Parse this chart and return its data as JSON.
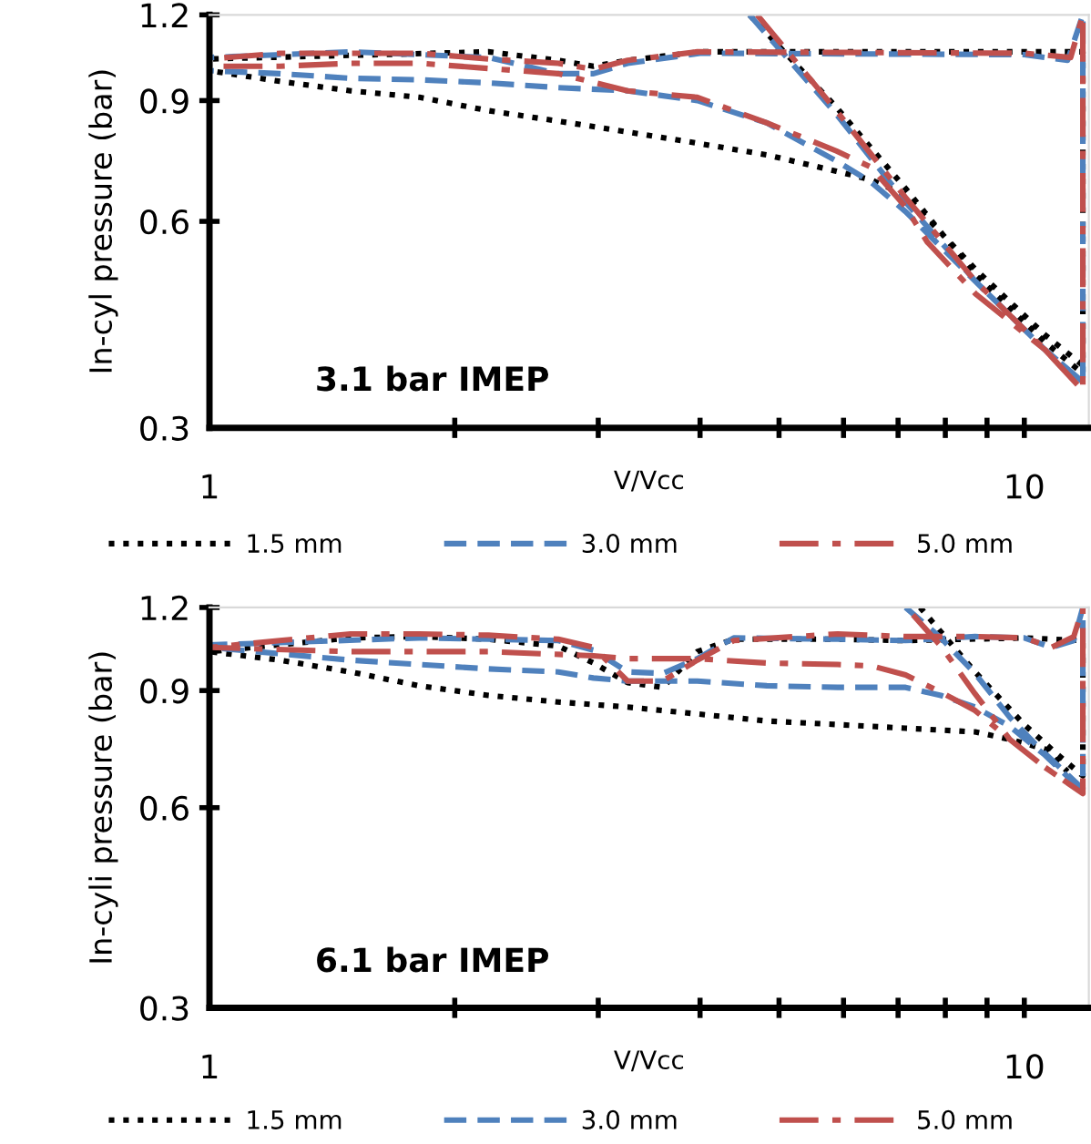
{
  "chart_data": [
    {
      "type": "line",
      "ylabel": "In-cyl pressure (bar)",
      "xlabel": "V/Vcc",
      "annotations": [
        "3.1 bar IMEP"
      ],
      "log": "xy",
      "xlim": [
        1,
        12
      ],
      "ylim": [
        0.3,
        1.2
      ],
      "xticks": [
        1,
        {
          "value": 2,
          "label": null
        },
        {
          "value": 3,
          "label": null
        },
        {
          "value": 4,
          "label": null
        },
        {
          "value": 5,
          "label": null
        },
        {
          "value": 6,
          "label": null
        },
        {
          "value": 7,
          "label": null
        },
        {
          "value": 8,
          "label": null
        },
        {
          "value": 9,
          "label": null
        },
        10
      ],
      "yticks": [
        0.3,
        0.6,
        0.9,
        1.2
      ],
      "grid": false,
      "legend": "bottom",
      "marker": "none",
      "series": [
        {
          "name": "1.5 mm",
          "color": "#000000",
          "line_style": "dotted",
          "x": [
            4.6,
            5.88,
            7.15,
            8.72,
            10.6,
            11.8,
            11.8,
            4.0,
            3.26,
            2.96,
            2.68,
            2.2,
            1.0,
            1.0,
            1.22,
            1.49,
            1.81,
            2.2,
            2.68,
            3.26,
            3.97,
            4.83,
            5.88,
            6.48,
            7.15,
            8.72,
            10.6,
            11.8
          ],
          "values": [
            1.2,
            0.88,
            0.67,
            0.5,
            0.4,
            0.36,
            1.06,
            1.06,
            1.03,
            1.01,
            1.03,
            1.06,
            1.035,
            0.995,
            0.96,
            0.93,
            0.91,
            0.87,
            0.84,
            0.81,
            0.78,
            0.75,
            0.71,
            0.69,
            0.655,
            0.51,
            0.41,
            0.37
          ]
        },
        {
          "name": "3.0 mm",
          "color": "#4f81bd",
          "line_style": "dashed",
          "x": [
            4.6,
            5.88,
            7.15,
            8.72,
            10.6,
            11.8,
            11.8,
            11.3,
            10,
            4.0,
            3.26,
            2.96,
            2.68,
            2.2,
            1.49,
            1.0,
            1.0,
            1.22,
            1.49,
            1.81,
            2.2,
            2.68,
            3.26,
            3.97,
            4.83,
            5.88,
            6.48,
            7.15,
            8.72,
            10.6,
            11.8
          ],
          "values": [
            1.2,
            0.86,
            0.64,
            0.49,
            0.39,
            0.35,
            1.2,
            1.03,
            1.05,
            1.055,
            1.02,
            0.985,
            0.985,
            1.04,
            1.06,
            1.04,
            0.995,
            0.985,
            0.97,
            0.965,
            0.955,
            0.94,
            0.93,
            0.9,
            0.835,
            0.735,
            0.685,
            0.62,
            0.49,
            0.39,
            0.35
          ]
        },
        {
          "name": "5.0 mm",
          "color": "#c0504d",
          "line_style": "dashdot",
          "x": [
            4.7,
            5.88,
            7.15,
            8.72,
            10.6,
            11.8,
            11.8,
            11.4,
            10,
            3.97,
            3.26,
            2.96,
            2.68,
            2.2,
            1.81,
            1.22,
            1.0,
            1.0,
            1.22,
            1.49,
            1.81,
            2.68,
            3.26,
            3.97,
            4.83,
            5.88,
            6.48,
            7.15,
            7.6,
            8.72,
            10.6,
            11.8
          ],
          "values": [
            1.2,
            0.87,
            0.65,
            0.49,
            0.39,
            0.34,
            1.2,
            1.04,
            1.055,
            1.06,
            1.03,
            1.0,
            1.02,
            1.035,
            1.055,
            1.055,
            1.035,
            1.01,
            1.01,
            1.02,
            1.02,
            0.985,
            0.93,
            0.91,
            0.835,
            0.76,
            0.72,
            0.63,
            0.56,
            0.47,
            0.39,
            0.34
          ]
        }
      ]
    },
    {
      "type": "line",
      "ylabel": "In-cyli pressure (bar)",
      "xlabel": "V/Vcc",
      "annotations": [
        "6.1 bar IMEP"
      ],
      "log": "xy",
      "xlim": [
        1,
        12
      ],
      "ylim": [
        0.3,
        1.2
      ],
      "xticks": [
        1,
        {
          "value": 2,
          "label": null
        },
        {
          "value": 3,
          "label": null
        },
        {
          "value": 4,
          "label": null
        },
        {
          "value": 5,
          "label": null
        },
        {
          "value": 6,
          "label": null
        },
        {
          "value": 7,
          "label": null
        },
        {
          "value": 8,
          "label": null
        },
        {
          "value": 9,
          "label": null
        },
        10
      ],
      "yticks": [
        0.3,
        0.6,
        0.9,
        1.2
      ],
      "grid": false,
      "legend": "bottom",
      "marker": "none",
      "series": [
        {
          "name": "1.5 mm",
          "color": "#000000",
          "line_style": "dotted",
          "x": [
            7.45,
            8.7,
            10,
            11.0,
            11.8,
            11.8,
            10,
            7.15,
            5.9,
            4.4,
            3.97,
            3.6,
            3.26,
            2.96,
            2.68,
            2.2,
            1.81,
            1.49,
            1.0,
            1.22,
            1.49,
            1.81,
            2.2,
            2.68,
            3.26,
            3.97,
            4.83,
            5.9,
            7.15,
            8.7,
            9.6,
            10.6,
            11.3
          ],
          "values": [
            1.2,
            0.96,
            0.8,
            0.72,
            0.67,
            1.07,
            1.08,
            1.07,
            1.075,
            1.075,
            1.03,
            0.91,
            0.925,
            0.99,
            1.05,
            1.075,
            1.085,
            1.08,
            1.03,
            1.0,
            0.96,
            0.915,
            0.885,
            0.865,
            0.85,
            0.83,
            0.81,
            0.8,
            0.79,
            0.78,
            0.76,
            0.735,
            0.68
          ]
        },
        {
          "name": "3.0 mm",
          "color": "#4f81bd",
          "line_style": "dashed",
          "x": [
            7.15,
            7.9,
            8.7,
            9.6,
            10.4,
            11.8,
            11.8,
            11.5,
            10.8,
            10,
            8.7,
            7.15,
            5.9,
            4.4,
            3.97,
            3.6,
            3.26,
            2.96,
            2.68,
            2.2,
            1.81,
            1.0,
            1.0,
            1.49,
            2.2,
            2.68,
            2.96,
            3.26,
            3.97,
            4.83,
            5.9,
            7.15,
            7.9,
            8.7,
            9.6,
            10.6,
            11.8
          ],
          "values": [
            1.2,
            1.08,
            0.955,
            0.82,
            0.74,
            0.64,
            1.2,
            1.07,
            1.045,
            1.08,
            1.085,
            1.07,
            1.075,
            1.08,
            1.005,
            0.955,
            0.96,
            1.035,
            1.07,
            1.075,
            1.08,
            1.054,
            1.045,
            1.0,
            0.97,
            0.96,
            0.94,
            0.93,
            0.93,
            0.915,
            0.91,
            0.91,
            0.885,
            0.85,
            0.795,
            0.72,
            0.635
          ]
        },
        {
          "name": "5.0 mm",
          "color": "#c0504d",
          "line_style": "dashdot",
          "x": [
            7.3,
            7.9,
            8.7,
            9.6,
            10.6,
            11.8,
            11.8,
            11.5,
            10.8,
            10,
            8.7,
            7.15,
            5.9,
            4.4,
            3.97,
            3.6,
            3.26,
            2.96,
            2.68,
            2.2,
            1.81,
            1.49,
            1.22,
            1.0,
            1.49,
            1.81,
            2.2,
            2.96,
            3.26,
            3.97,
            4.83,
            5.9,
            6.5,
            7.15,
            7.9,
            8.7,
            9.6,
            10.6,
            11.8
          ],
          "values": [
            1.17,
            1.05,
            0.89,
            0.76,
            0.69,
            0.63,
            1.2,
            1.085,
            1.045,
            1.08,
            1.085,
            1.085,
            1.095,
            1.07,
            1.0,
            0.93,
            0.93,
            1.045,
            1.075,
            1.09,
            1.095,
            1.095,
            1.07,
            1.045,
            1.03,
            1.03,
            1.03,
            1.015,
            1.005,
            1.005,
            0.99,
            0.985,
            0.98,
            0.95,
            0.895,
            0.84,
            0.76,
            0.69,
            0.63
          ]
        }
      ]
    }
  ]
}
